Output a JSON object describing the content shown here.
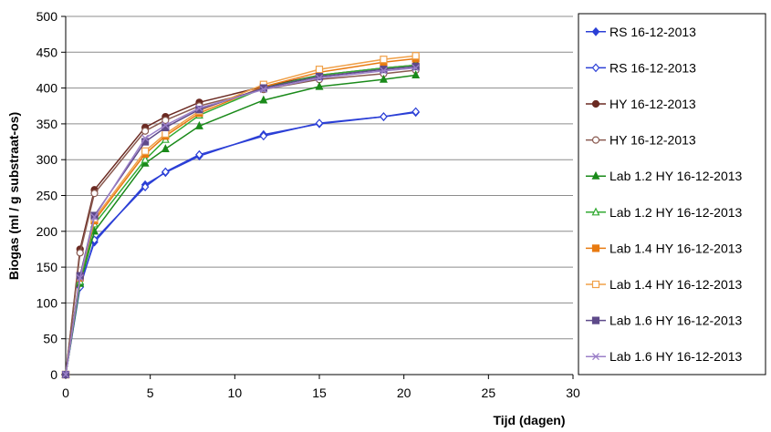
{
  "chart_data": {
    "type": "line",
    "title": "",
    "xlabel": "Tijd (dagen)",
    "ylabel": "Biogas (ml / g substraat-os)",
    "xlim": [
      0,
      30
    ],
    "ylim": [
      0,
      500
    ],
    "xticks": [
      0,
      5,
      10,
      15,
      20,
      25,
      30
    ],
    "yticks": [
      0,
      50,
      100,
      150,
      200,
      250,
      300,
      350,
      400,
      450,
      500
    ],
    "grid": "horizontal",
    "legend_position": "right",
    "series": [
      {
        "name": "RS 16-12-2013",
        "color": "#2b3fd6",
        "marker": "filled-diamond",
        "x": [
          0,
          0.85,
          1.7,
          4.7,
          5.9,
          7.9,
          11.7,
          15.0,
          18.8,
          20.7
        ],
        "y": [
          0,
          125,
          185,
          265,
          282,
          305,
          335,
          350,
          360,
          366
        ]
      },
      {
        "name": "RS 16-12-2013",
        "color": "#2b3fd6",
        "marker": "open-diamond",
        "x": [
          0,
          0.85,
          1.7,
          4.7,
          5.9,
          7.9,
          11.7,
          15.0,
          18.8,
          20.7
        ],
        "y": [
          0,
          122,
          188,
          262,
          283,
          307,
          333,
          351,
          360,
          367
        ]
      },
      {
        "name": "HY 16-12-2013",
        "color": "#6b2a22",
        "marker": "filled-circle",
        "x": [
          0,
          0.85,
          1.7,
          4.7,
          5.9,
          7.9,
          11.7,
          15.0,
          18.8,
          20.7
        ],
        "y": [
          0,
          175,
          258,
          345,
          360,
          380,
          402,
          418,
          428,
          432
        ]
      },
      {
        "name": "HY 16-12-2013",
        "color": "#8a5a50",
        "marker": "open-circle",
        "x": [
          0,
          0.85,
          1.7,
          4.7,
          5.9,
          7.9,
          11.7,
          15.0,
          18.8,
          20.7
        ],
        "y": [
          0,
          170,
          253,
          340,
          355,
          375,
          398,
          412,
          420,
          425
        ]
      },
      {
        "name": "Lab 1.2 HY 16-12-2013",
        "color": "#1a8a1a",
        "marker": "filled-triangle",
        "x": [
          0,
          0.85,
          1.7,
          4.7,
          5.9,
          7.9,
          11.7,
          15.0,
          18.8,
          20.7
        ],
        "y": [
          0,
          127,
          200,
          295,
          315,
          347,
          383,
          402,
          412,
          418
        ]
      },
      {
        "name": "Lab 1.2 HY 16-12-2013",
        "color": "#33aa33",
        "marker": "open-triangle",
        "x": [
          0,
          0.85,
          1.7,
          4.7,
          5.9,
          7.9,
          11.7,
          15.0,
          18.8,
          20.7
        ],
        "y": [
          0,
          130,
          210,
          300,
          328,
          362,
          400,
          418,
          428,
          432
        ]
      },
      {
        "name": "Lab 1.4 HY 16-12-2013",
        "color": "#e87a10",
        "marker": "filled-square",
        "x": [
          0,
          0.85,
          1.7,
          4.7,
          5.9,
          7.9,
          11.7,
          15.0,
          18.8,
          20.7
        ],
        "y": [
          0,
          135,
          215,
          308,
          333,
          365,
          402,
          422,
          436,
          441
        ]
      },
      {
        "name": "Lab 1.4 HY 16-12-2013",
        "color": "#f0a048",
        "marker": "open-square",
        "x": [
          0,
          0.85,
          1.7,
          4.7,
          5.9,
          7.9,
          11.7,
          15.0,
          18.8,
          20.7
        ],
        "y": [
          0,
          138,
          218,
          312,
          336,
          368,
          405,
          426,
          440,
          445
        ]
      },
      {
        "name": "Lab 1.6 HY 16-12-2013",
        "color": "#5e4a8a",
        "marker": "filled-square",
        "x": [
          0,
          0.85,
          1.7,
          4.7,
          5.9,
          7.9,
          11.7,
          15.0,
          18.8,
          20.7
        ],
        "y": [
          0,
          138,
          222,
          325,
          345,
          370,
          400,
          416,
          426,
          430
        ]
      },
      {
        "name": "Lab 1.6 HY 16-12-2013",
        "color": "#9b7fc8",
        "marker": "x",
        "x": [
          0,
          0.85,
          1.7,
          4.7,
          5.9,
          7.9,
          11.7,
          15.0,
          18.8,
          20.7
        ],
        "y": [
          0,
          135,
          220,
          330,
          348,
          372,
          398,
          414,
          424,
          428
        ]
      }
    ]
  }
}
